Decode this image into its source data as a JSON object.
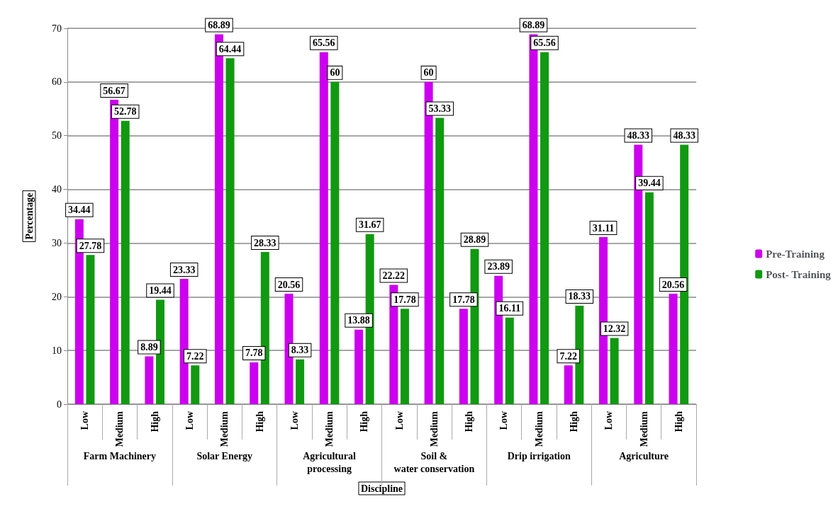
{
  "chart_data": {
    "type": "bar",
    "xlabel": "Discipline",
    "ylabel": "Percentage",
    "categories": [
      "Low",
      "Medium",
      "High",
      "Low",
      "Medium",
      "High",
      "Low",
      "Medium",
      "High",
      "Low",
      "Medium",
      "High",
      "Low",
      "Medium",
      "High",
      "Low",
      "Medium",
      "High"
    ],
    "annotations": [
      "Farm Machinery",
      "Solar Energy",
      "Agricultural processing",
      "Soil & water conservation",
      "Drip irrigation",
      "Agriculture"
    ],
    "series": [
      {
        "name": "Pre-Training",
        "color": "#cc00ee",
        "values": [
          34.44,
          56.67,
          8.89,
          23.33,
          68.89,
          7.78,
          20.56,
          65.56,
          13.88,
          22.22,
          60,
          17.78,
          23.89,
          68.89,
          7.22,
          31.11,
          48.33,
          20.56
        ]
      },
      {
        "name": "Post- Training",
        "color": "#119911",
        "values": [
          27.78,
          52.78,
          19.44,
          7.22,
          64.44,
          28.33,
          8.33,
          60,
          31.67,
          17.78,
          53.33,
          28.89,
          16.11,
          65.56,
          18.33,
          12.32,
          39.44,
          48.33
        ]
      }
    ],
    "ylim": [
      0,
      70
    ],
    "yticks": [
      0,
      10,
      20,
      30,
      40,
      50,
      60,
      70
    ],
    "grid": "y",
    "legend": "right",
    "data_labels": true
  }
}
